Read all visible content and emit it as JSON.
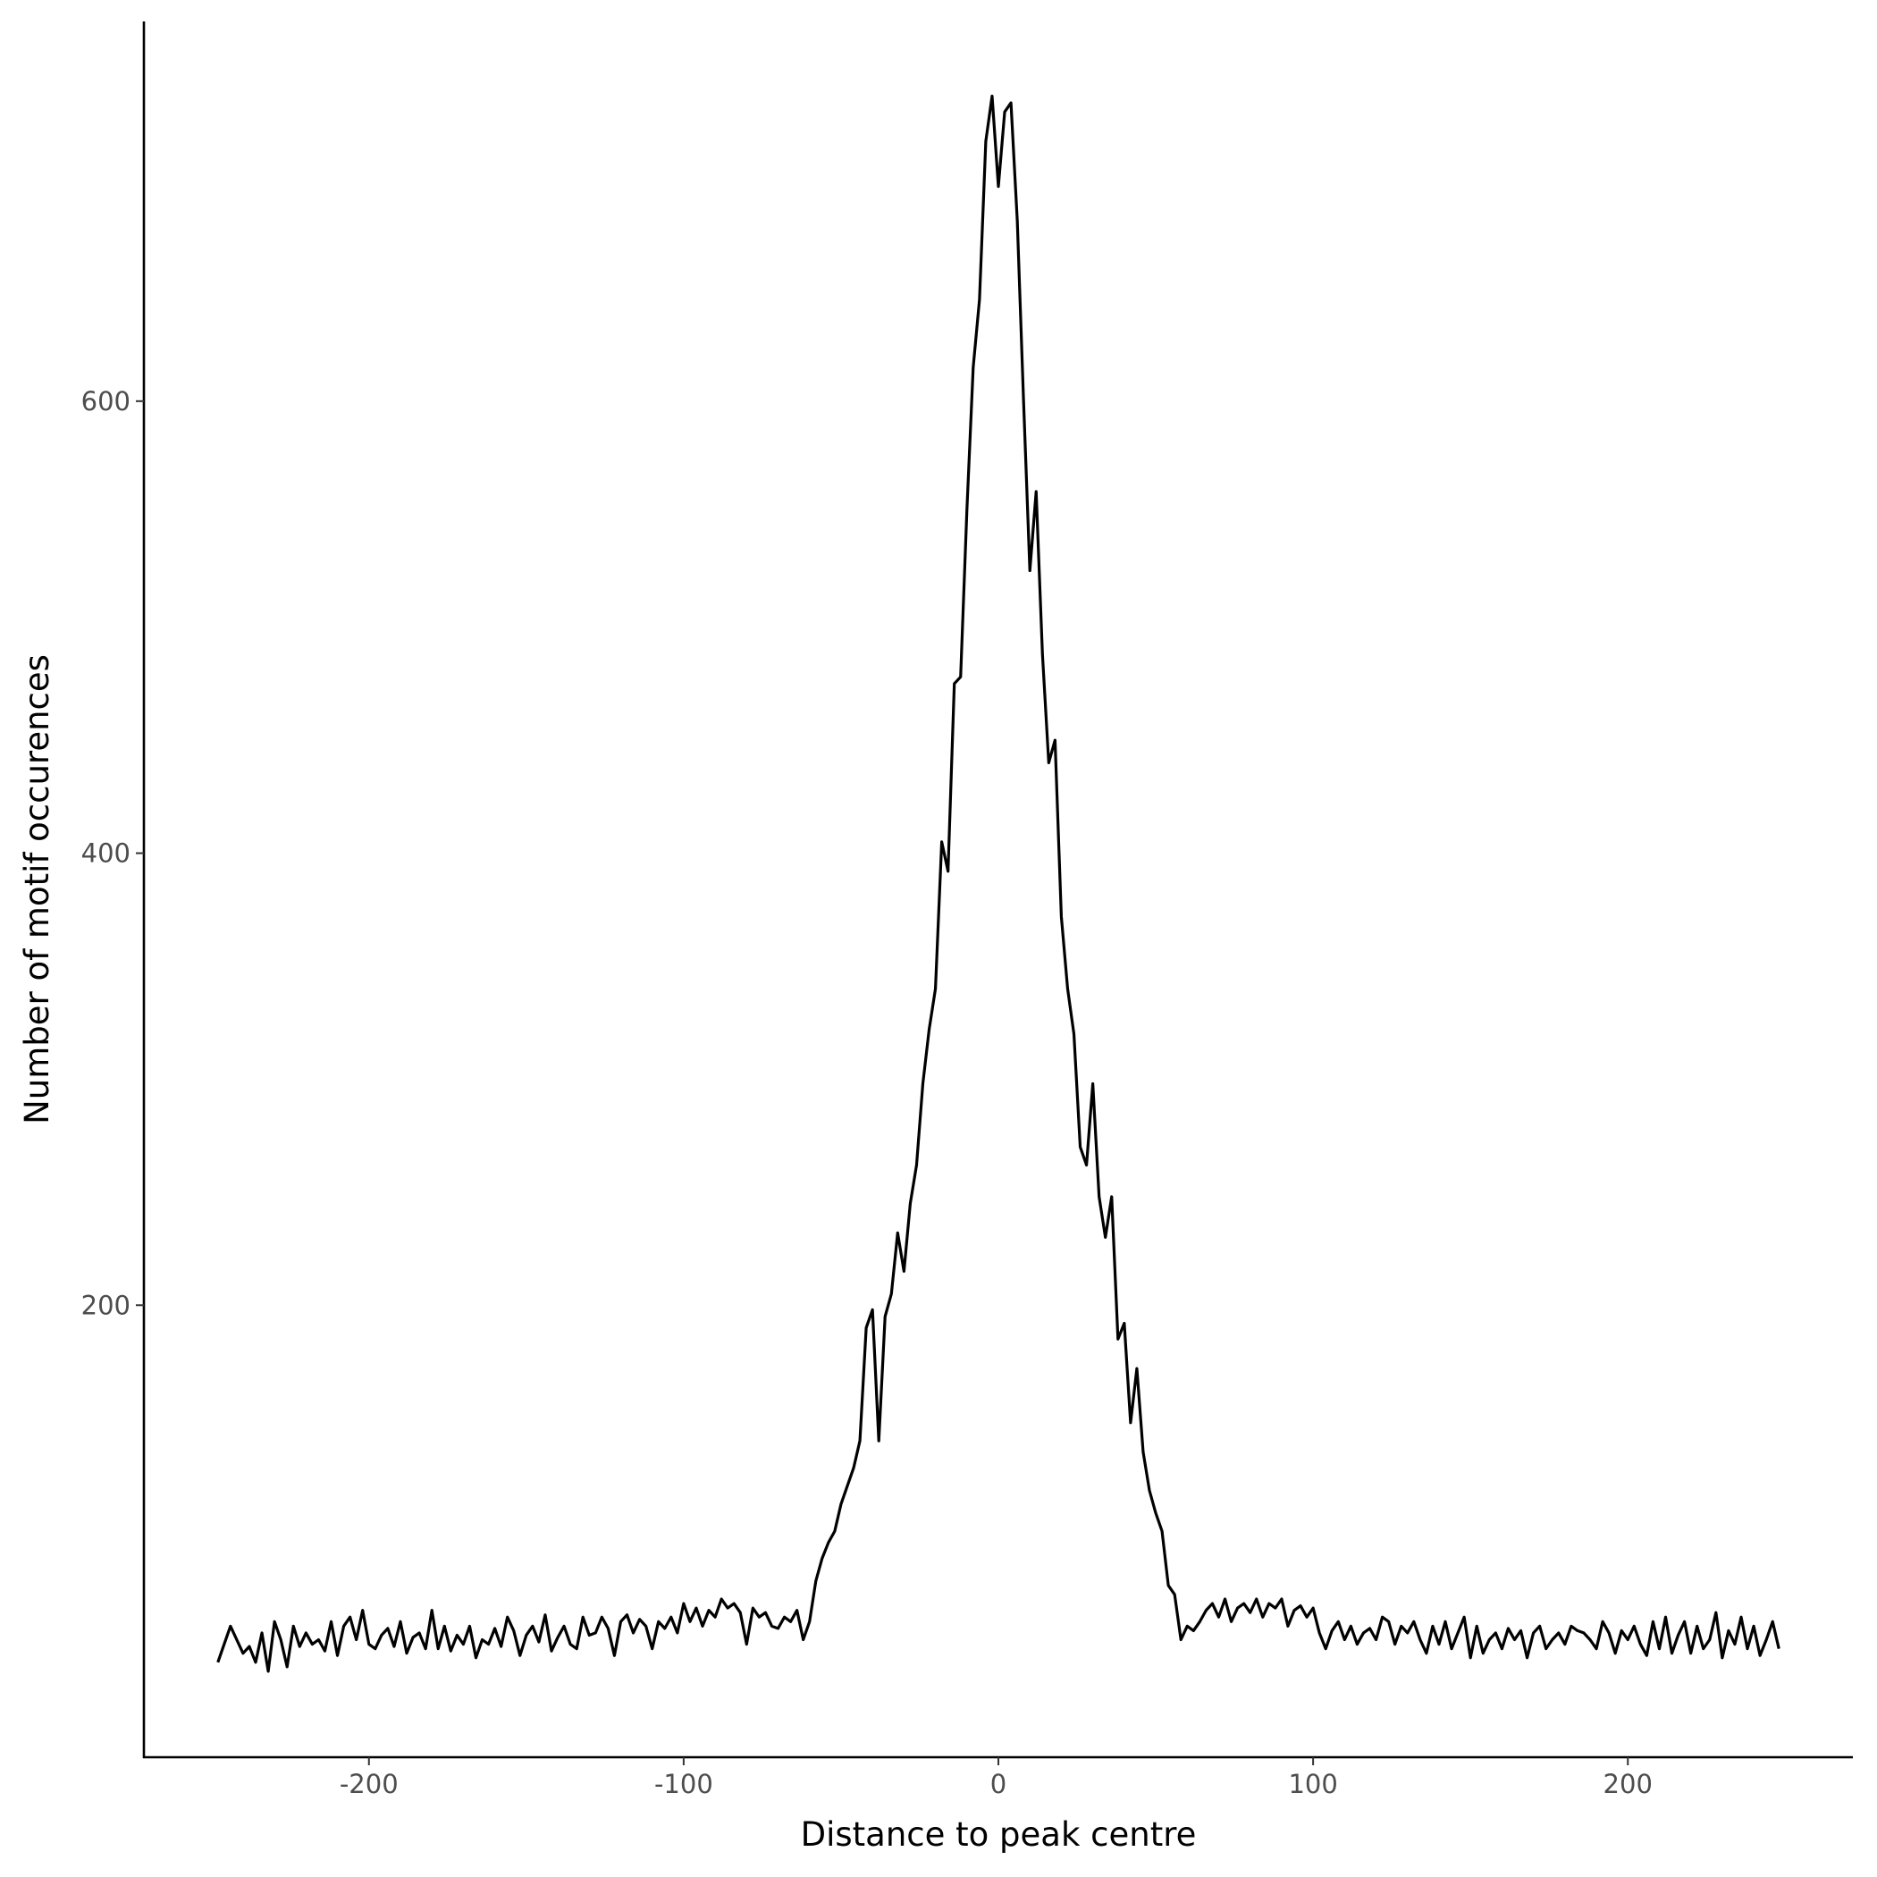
{
  "chart_data": {
    "type": "line",
    "xlabel": "Distance to peak centre",
    "ylabel": "Number of motif occurences",
    "xlim": [
      -271.5,
      271.5
    ],
    "ylim": [
      0,
      768
    ],
    "xticks": [
      -200,
      -100,
      0,
      100,
      200
    ],
    "yticks": [
      200,
      400,
      600
    ],
    "color": "#000000",
    "x": [
      -248,
      -246,
      -244,
      -242,
      -240,
      -238,
      -236,
      -234,
      -232,
      -230,
      -228,
      -226,
      -224,
      -222,
      -220,
      -218,
      -216,
      -214,
      -212,
      -210,
      -208,
      -206,
      -204,
      -202,
      -200,
      -198,
      -196,
      -194,
      -192,
      -190,
      -188,
      -186,
      -184,
      -182,
      -180,
      -178,
      -176,
      -174,
      -172,
      -170,
      -168,
      -166,
      -164,
      -162,
      -160,
      -158,
      -156,
      -154,
      -152,
      -150,
      -148,
      -146,
      -144,
      -142,
      -140,
      -138,
      -136,
      -134,
      -132,
      -130,
      -128,
      -126,
      -124,
      -122,
      -120,
      -118,
      -116,
      -114,
      -112,
      -110,
      -108,
      -106,
      -104,
      -102,
      -100,
      -98,
      -96,
      -94,
      -92,
      -90,
      -88,
      -86,
      -84,
      -82,
      -80,
      -78,
      -76,
      -74,
      -72,
      -70,
      -68,
      -66,
      -64,
      -62,
      -60,
      -58,
      -56,
      -54,
      -52,
      -50,
      -48,
      -46,
      -44,
      -42,
      -40,
      -38,
      -36,
      -34,
      -32,
      -30,
      -28,
      -26,
      -24,
      -22,
      -20,
      -18,
      -16,
      -14,
      -12,
      -10,
      -8,
      -6,
      -4,
      -2,
      0,
      2,
      4,
      6,
      8,
      10,
      12,
      14,
      16,
      18,
      20,
      22,
      24,
      26,
      28,
      30,
      32,
      34,
      36,
      38,
      40,
      42,
      44,
      46,
      48,
      50,
      52,
      54,
      56,
      58,
      60,
      62,
      64,
      66,
      68,
      70,
      72,
      74,
      76,
      78,
      80,
      82,
      84,
      86,
      88,
      90,
      92,
      94,
      96,
      98,
      100,
      102,
      104,
      106,
      108,
      110,
      112,
      114,
      116,
      118,
      120,
      122,
      124,
      126,
      128,
      130,
      132,
      134,
      136,
      138,
      140,
      142,
      144,
      146,
      148,
      150,
      152,
      154,
      156,
      158,
      160,
      162,
      164,
      166,
      168,
      170,
      172,
      174,
      176,
      178,
      180,
      182,
      184,
      186,
      188,
      190,
      192,
      194,
      196,
      198,
      200,
      202,
      204,
      206,
      208,
      210,
      212,
      214,
      216,
      218,
      220,
      222,
      224,
      226,
      228,
      230,
      232,
      234,
      236,
      238,
      240,
      242,
      244,
      246,
      248
    ],
    "values": [
      42,
      50,
      58,
      52,
      46,
      49,
      42,
      55,
      38,
      60,
      52,
      40,
      58,
      49,
      55,
      50,
      52,
      47,
      60,
      45,
      58,
      62,
      52,
      65,
      50,
      48,
      54,
      57,
      49,
      60,
      46,
      53,
      55,
      48,
      65,
      48,
      58,
      47,
      54,
      50,
      58,
      44,
      52,
      50,
      57,
      49,
      62,
      56,
      45,
      54,
      58,
      51,
      63,
      47,
      53,
      58,
      50,
      48,
      62,
      54,
      55,
      62,
      57,
      45,
      60,
      63,
      55,
      61,
      58,
      48,
      60,
      57,
      62,
      55,
      68,
      60,
      66,
      58,
      65,
      62,
      70,
      66,
      68,
      64,
      50,
      66,
      62,
      64,
      58,
      57,
      62,
      60,
      65,
      52,
      60,
      78,
      88,
      95,
      100,
      112,
      120,
      128,
      140,
      190,
      198,
      140,
      195,
      205,
      232,
      215,
      245,
      262,
      298,
      322,
      340,
      405,
      392,
      475,
      478,
      552,
      615,
      645,
      715,
      735,
      695,
      728,
      732,
      680,
      600,
      525,
      560,
      488,
      440,
      450,
      372,
      340,
      320,
      270,
      262,
      298,
      248,
      230,
      248,
      185,
      192,
      148,
      172,
      135,
      118,
      108,
      100,
      76,
      72,
      52,
      58,
      56,
      60,
      65,
      68,
      62,
      70,
      60,
      66,
      68,
      64,
      70,
      62,
      68,
      66,
      70,
      58,
      65,
      67,
      62,
      66,
      55,
      48,
      56,
      60,
      52,
      58,
      50,
      55,
      57,
      52,
      62,
      60,
      50,
      58,
      55,
      60,
      52,
      46,
      58,
      50,
      60,
      48,
      55,
      62,
      44,
      58,
      46,
      52,
      55,
      48,
      57,
      52,
      56,
      44,
      55,
      58,
      48,
      52,
      55,
      50,
      58,
      56,
      55,
      52,
      48,
      60,
      55,
      46,
      56,
      52,
      58,
      50,
      45,
      60,
      48,
      62,
      46,
      54,
      60,
      46,
      58,
      48,
      52,
      64,
      44,
      56,
      50,
      62,
      48,
      58,
      45,
      52,
      60,
      48
    ]
  }
}
